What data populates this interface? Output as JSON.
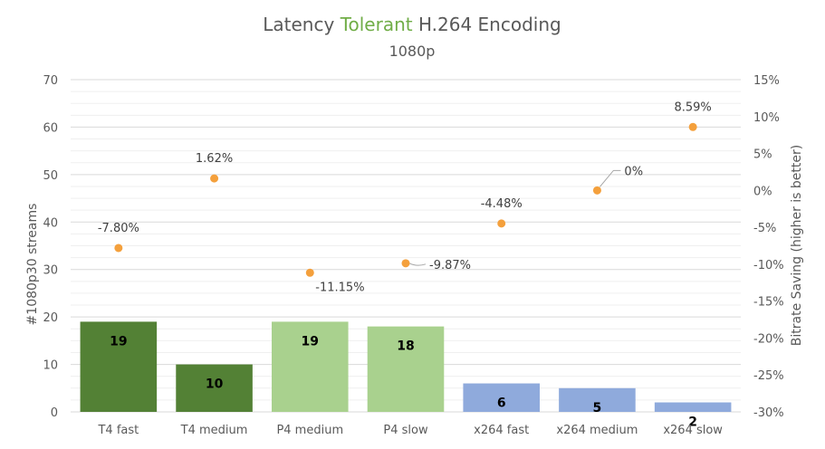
{
  "chart_data": {
    "type": "bar",
    "title": {
      "prefix": "Latency ",
      "highlight": "Tolerant",
      "suffix": " H.264 Encoding",
      "highlight_color": "#70ad47"
    },
    "subtitle": "1080p",
    "categories": [
      "T4 fast",
      "T4 medium",
      "P4 medium",
      "P4 slow",
      "x264 fast",
      "x264 medium",
      "x264 slow"
    ],
    "bar_series": {
      "name": "#1080p30 streams",
      "values": [
        19,
        10,
        19,
        18,
        6,
        5,
        2
      ],
      "value_labels": [
        "19",
        "10",
        "19",
        "18",
        "6",
        "5",
        "2"
      ],
      "colors": [
        "#538135",
        "#538135",
        "#a9d18e",
        "#a9d18e",
        "#8faadc",
        "#8faadc",
        "#8faadc"
      ]
    },
    "point_series": {
      "name": "Bitrate Saving (higher is better)",
      "values": [
        -7.8,
        1.62,
        -11.15,
        -9.87,
        -4.48,
        0,
        8.59
      ],
      "value_labels": [
        "-7.80%",
        "1.62%",
        "-11.15%",
        "-9.87%",
        "-4.48%",
        "0%",
        "8.59%"
      ],
      "color": "#f4a03c"
    },
    "ylabel": "#1080p30 streams",
    "y2label": "Bitrate Saving (higher is better)",
    "ylim": [
      0,
      70
    ],
    "yticks": [
      "0",
      "10",
      "20",
      "30",
      "40",
      "50",
      "60",
      "70"
    ],
    "y2lim": [
      -30,
      15
    ],
    "y2ticks": [
      "15%",
      "10%",
      "5%",
      "0%",
      "-5%",
      "-10%",
      "-15%",
      "-20%",
      "-25%",
      "-30%"
    ],
    "grid": true,
    "colors": {
      "grid": "#d9d9d9",
      "text": "#595959"
    }
  }
}
